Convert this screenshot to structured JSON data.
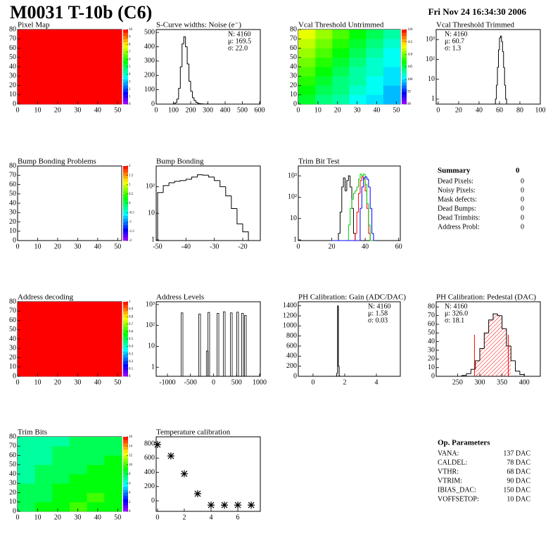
{
  "header": {
    "title": "M0031 T-10b (C6)",
    "date": "Fri Nov 24 16:34:30 2006"
  },
  "chart_data": [
    {
      "type": "heatmap",
      "title": "Pixel Map",
      "xlim": [
        0,
        52
      ],
      "ylim": [
        0,
        80
      ],
      "xticks": [
        0,
        10,
        20,
        30,
        40,
        50
      ],
      "yticks": [
        0,
        10,
        20,
        30,
        40,
        50,
        60,
        70,
        80
      ],
      "zlim": [
        0,
        10
      ],
      "zticks": [
        0,
        1,
        2,
        3,
        4,
        5,
        6,
        7,
        8,
        9,
        10
      ],
      "values": [
        [
          10,
          10,
          10,
          10
        ],
        [
          10,
          10,
          10,
          10
        ],
        [
          10,
          10,
          10,
          10
        ],
        [
          10,
          10,
          10,
          10
        ]
      ]
    },
    {
      "type": "histogram",
      "title": "S-Curve widths: Noise (e⁻)",
      "xlim": [
        0,
        604
      ],
      "ylim": [
        0,
        520
      ],
      "xticks": [
        0,
        100,
        200,
        300,
        400,
        500,
        600
      ],
      "yticks": [
        0,
        100,
        200,
        300,
        400,
        500
      ],
      "color": "#000000",
      "bins": [
        100,
        110,
        120,
        130,
        140,
        150,
        160,
        170,
        180,
        190,
        200,
        210,
        220,
        230,
        240,
        250,
        260,
        270,
        280,
        290,
        300
      ],
      "values": [
        3,
        10,
        35,
        110,
        260,
        420,
        470,
        400,
        280,
        160,
        90,
        45,
        25,
        12,
        6,
        3,
        2,
        1,
        0,
        1
      ],
      "stats_corner": "top-right",
      "stats": [
        {
          "text": "N: 4160"
        },
        {
          "text": "μ: 169.5"
        },
        {
          "text": "σ: 22.0"
        }
      ]
    },
    {
      "type": "heatmap",
      "title": "Vcal Threshold Untrimmed",
      "xlim": [
        0,
        52
      ],
      "ylim": [
        0,
        80
      ],
      "xticks": [
        0,
        10,
        20,
        30,
        40,
        50
      ],
      "yticks": [
        0,
        10,
        20,
        30,
        40,
        50,
        60,
        70,
        80
      ],
      "zlim": [
        90,
        120
      ],
      "zticks": [
        90,
        95,
        100,
        105,
        110,
        115,
        120
      ],
      "values": [
        [
          106,
          104,
          103,
          101,
          100,
          99
        ],
        [
          107,
          105,
          104,
          102,
          101,
          99
        ],
        [
          108,
          106,
          104,
          103,
          101,
          100
        ],
        [
          109,
          107,
          105,
          103,
          102,
          100
        ],
        [
          110,
          108,
          106,
          104,
          102,
          101
        ],
        [
          111,
          109,
          107,
          105,
          103,
          101
        ],
        [
          112,
          110,
          108,
          106,
          104,
          102
        ],
        [
          113,
          111,
          109,
          107,
          105,
          103
        ]
      ]
    },
    {
      "type": "histogram",
      "title": "Vcal Threshold Trimmed",
      "log_y": true,
      "xlim": [
        -2,
        100
      ],
      "ylim": [
        0.56,
        3200
      ],
      "xticks": [
        0,
        20,
        40,
        60,
        80,
        100
      ],
      "yticks": [
        1,
        10,
        {
          "value": 100,
          "label": "10²"
        },
        {
          "value": 1000,
          "label": "10³"
        }
      ],
      "color": "#000000",
      "bins": [
        56,
        57,
        58,
        59,
        60,
        61,
        62,
        63,
        64,
        65,
        66,
        67
      ],
      "values": [
        1,
        5,
        40,
        300,
        1200,
        1500,
        800,
        250,
        40,
        5,
        1
      ],
      "stats_corner": "top-left",
      "stats": [
        {
          "text": "N: 4160"
        },
        {
          "text": "μ: 60.7"
        },
        {
          "text": "σ:  1.3"
        }
      ]
    },
    {
      "type": "heatmap",
      "title": "Bump Bonding Problems",
      "xlim": [
        0,
        52
      ],
      "ylim": [
        0,
        80
      ],
      "xticks": [
        0,
        10,
        20,
        30,
        40,
        50
      ],
      "yticks": [
        0,
        10,
        20,
        30,
        40,
        50,
        60,
        70,
        80
      ],
      "zlim": [
        -2,
        2
      ],
      "zticks": [
        -2,
        -1.5,
        -1,
        -0.5,
        0,
        0.5,
        1,
        1.5,
        2
      ]
    },
    {
      "type": "histogram",
      "title": "Bump Bonding",
      "log_y": true,
      "xlim": [
        -50.5,
        -13.8
      ],
      "ylim": [
        0.94,
        600
      ],
      "xticks": [
        -50,
        -40,
        -30,
        -20
      ],
      "yticks": [
        1,
        10,
        {
          "value": 100,
          "label": "10²"
        }
      ],
      "color": "#000000",
      "bins": [
        -50,
        -48,
        -46,
        -44,
        -42,
        -40,
        -38,
        -36,
        -34,
        -32,
        -30,
        -28,
        -26,
        -24,
        -22,
        -20,
        -18
      ],
      "values": [
        60,
        110,
        140,
        160,
        170,
        190,
        230,
        280,
        270,
        230,
        170,
        100,
        45,
        15,
        4,
        2
      ]
    },
    {
      "type": "histogram",
      "title": "Trim Bit Test",
      "log_y": true,
      "xlim": [
        0,
        61
      ],
      "ylim": [
        0.93,
        2900
      ],
      "xticks": [
        0,
        20,
        40,
        60
      ],
      "yticks": [
        1,
        10,
        {
          "value": 100,
          "label": "10²"
        },
        {
          "value": 1000,
          "label": "10³"
        }
      ],
      "bins": [
        20,
        21,
        22,
        23,
        24,
        25,
        26,
        27,
        28,
        29,
        30,
        31,
        32,
        33,
        34,
        35,
        36,
        37,
        38,
        39,
        40,
        41,
        42,
        43,
        44,
        45,
        46
      ],
      "series": [
        {
          "color": "#000000",
          "values": [
            0,
            0,
            0,
            0,
            2,
            20,
            300,
            800,
            200,
            600,
            1000,
            300,
            30,
            2,
            0,
            0,
            0,
            0,
            0,
            0,
            0,
            0,
            0,
            0,
            0,
            0
          ]
        },
        {
          "color": "#ff0000",
          "values": [
            0,
            0,
            0,
            0,
            0,
            0,
            0,
            0,
            0,
            0,
            0,
            0,
            0,
            0,
            2,
            20,
            150,
            600,
            900,
            700,
            200,
            30,
            2,
            0,
            0,
            0
          ]
        },
        {
          "color": "#00cc00",
          "values": [
            0,
            0,
            0,
            0,
            0,
            0,
            0,
            0,
            0,
            0,
            5,
            30,
            80,
            150,
            200,
            300,
            700,
            1200,
            1000,
            1200,
            400,
            50,
            5,
            0,
            0,
            0
          ]
        },
        {
          "color": "#0000ff",
          "values": [
            0,
            0,
            0,
            0,
            0,
            0,
            0,
            0,
            0,
            0,
            0,
            0,
            0,
            0,
            0,
            0,
            0,
            30,
            300,
            800,
            900,
            700,
            300,
            30,
            2,
            0
          ]
        }
      ]
    },
    {
      "type": "heatmap",
      "title": "Address decoding",
      "xlim": [
        0,
        52
      ],
      "ylim": [
        0,
        80
      ],
      "xticks": [
        0,
        10,
        20,
        30,
        40,
        50
      ],
      "yticks": [
        0,
        10,
        20,
        30,
        40,
        50,
        60,
        70,
        80
      ],
      "zlim": [
        0,
        1
      ],
      "zticks": [
        0,
        0.1,
        0.2,
        0.3,
        0.4,
        0.5,
        0.6,
        0.7,
        0.8,
        0.9,
        1
      ],
      "values": [
        [
          1,
          1,
          1,
          1
        ],
        [
          1,
          1,
          1,
          1
        ],
        [
          1,
          1,
          1,
          1
        ],
        [
          1,
          1,
          1,
          1
        ]
      ]
    },
    {
      "type": "spikes",
      "title": "Address Levels",
      "log_y": true,
      "xlim": [
        -1244,
        1015
      ],
      "ylim": [
        0.37,
        1360
      ],
      "xticks": [
        -1000,
        -500,
        0,
        500,
        1000
      ],
      "yticks": [
        1,
        10,
        {
          "value": 100,
          "label": "10²"
        },
        {
          "value": 1000,
          "label": "10³"
        }
      ],
      "color": "#000000",
      "x": [
        -687,
        -305,
        -140,
        -107,
        92,
        229,
        382,
        519,
        626,
        687
      ],
      "values": [
        400,
        350,
        6,
        420,
        380,
        450,
        400,
        430,
        380,
        300
      ]
    },
    {
      "type": "histogram",
      "title": "PH Calibration: Gain (ADC/DAC)",
      "xlim": [
        -0.93,
        5.51
      ],
      "ylim": [
        0,
        1480
      ],
      "xticks": [
        0,
        2,
        4
      ],
      "yticks": [
        0,
        200,
        400,
        600,
        800,
        1000,
        1200,
        1400
      ],
      "color": "#000000",
      "bins": [
        1.45,
        1.5,
        1.55,
        1.6,
        1.65,
        1.7,
        1.75
      ],
      "values": [
        5,
        60,
        1400,
        200,
        10,
        0
      ],
      "stats_corner": "top-right",
      "stats": [
        {
          "text": "N: 4160"
        },
        {
          "text": "μ: 1.58"
        },
        {
          "text": "σ: 0.03"
        }
      ]
    },
    {
      "type": "histogram",
      "title": "PH Calibration: Pedestal (DAC)",
      "xlim": [
        202,
        436
      ],
      "ylim": [
        0,
        86
      ],
      "xticks": [
        250,
        300,
        350,
        400
      ],
      "yticks": [
        0,
        10,
        20,
        30,
        40,
        50,
        60,
        70,
        80
      ],
      "color": "#000000",
      "fit_color": "#ff0000",
      "bins": [
        260,
        270,
        280,
        290,
        300,
        310,
        320,
        330,
        340,
        350,
        360,
        370,
        380,
        390,
        400
      ],
      "values": [
        1,
        3,
        8,
        18,
        32,
        50,
        65,
        72,
        70,
        55,
        35,
        18,
        6,
        2
      ],
      "fit_lines": [
        {
          "x": 288,
          "y": 48
        },
        {
          "x": 364,
          "y": 48
        }
      ],
      "stats_corner": "top-left",
      "stats": [
        {
          "text": "N: 4160"
        },
        {
          "text": "μ: 326.0",
          "color": "#ff0000"
        },
        {
          "text": "σ: 18.1",
          "color": "#ff0000"
        }
      ]
    },
    {
      "type": "heatmap",
      "title": "Trim Bits",
      "xlim": [
        0,
        52
      ],
      "ylim": [
        0,
        80
      ],
      "xticks": [
        0,
        10,
        20,
        30,
        40,
        50
      ],
      "yticks": [
        0,
        10,
        20,
        30,
        40,
        50,
        60,
        70,
        80
      ],
      "zlim": [
        0,
        16
      ],
      "zticks": [
        0,
        2,
        4,
        6,
        8,
        10,
        12,
        14,
        16
      ],
      "values": [
        [
          8,
          9,
          9,
          10,
          9,
          9
        ],
        [
          8,
          8,
          9,
          9,
          10,
          9
        ],
        [
          8,
          8,
          9,
          9,
          9,
          9
        ],
        [
          7,
          8,
          8,
          9,
          9,
          9
        ],
        [
          7,
          8,
          8,
          8,
          9,
          9
        ],
        [
          7,
          7,
          8,
          8,
          8,
          9
        ],
        [
          7,
          7,
          8,
          8,
          8,
          8
        ],
        [
          7,
          7,
          7,
          8,
          8,
          8
        ]
      ]
    },
    {
      "type": "scatter",
      "title": "Temperature calibration",
      "xlim": [
        -0.1,
        7.68
      ],
      "ylim": [
        -148,
        899
      ],
      "xticks": [
        0,
        2,
        4,
        6
      ],
      "yticks": [
        0,
        200,
        400,
        600,
        800
      ],
      "color": "#000000",
      "x": [
        0,
        1,
        2,
        3,
        4,
        5,
        6,
        7
      ],
      "values": [
        790,
        630,
        380,
        100,
        -60,
        -60,
        -60,
        -60
      ]
    }
  ],
  "summary": {
    "title": "Summary",
    "total": 0,
    "rows": [
      {
        "label": "Dead Pixels:",
        "value": 0
      },
      {
        "label": "Noisy Pixels:",
        "value": 0
      },
      {
        "label": "Mask defects:",
        "value": 0
      },
      {
        "label": "Dead Bumps:",
        "value": 0
      },
      {
        "label": "Dead Trimbits:",
        "value": 0
      },
      {
        "label": "Address Probl:",
        "value": 0
      }
    ]
  },
  "op_parameters": {
    "title": "Op. Parameters",
    "rows": [
      {
        "label": "VANA:",
        "value": "137 DAC"
      },
      {
        "label": "CALDEL:",
        "value": "78 DAC"
      },
      {
        "label": "VTHR:",
        "value": "68 DAC"
      },
      {
        "label": "VTRIM:",
        "value": "90 DAC"
      },
      {
        "label": "IBIAS_DAC:",
        "value": "150 DAC"
      },
      {
        "label": "VOFFSETOP:",
        "value": "10 DAC"
      }
    ]
  }
}
